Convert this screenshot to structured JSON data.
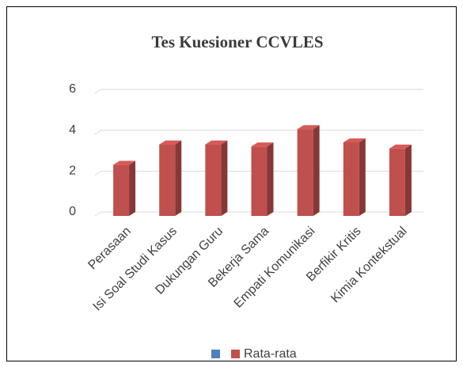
{
  "chart_data": {
    "type": "bar3d",
    "title": "Tes Kuesioner CCVLES",
    "categories": [
      "Perasaan",
      "Isi Soal Studi Kasus",
      "Dukungan Guru",
      "Bekerja Sama",
      "Empati Komunikasi",
      "Berfikir Kritis",
      "Kimia Kontekstual"
    ],
    "series": [
      {
        "name": "Rata-rata",
        "color": "#c0504d",
        "values": [
          2.5,
          3.5,
          3.5,
          3.4,
          4.25,
          3.6,
          3.3
        ]
      }
    ],
    "ylim": [
      0,
      6
    ],
    "yticks": [
      0,
      2,
      4,
      6
    ],
    "grid": true,
    "legend": "bottom"
  }
}
